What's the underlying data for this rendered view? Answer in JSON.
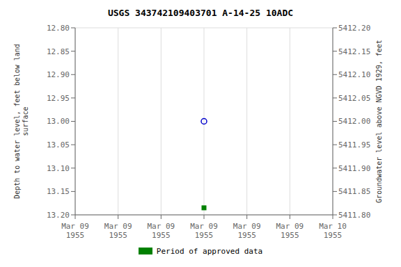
{
  "chart_data": {
    "type": "scatter",
    "title": "USGS 343742109403701 A-14-25 10ADC",
    "y_label": "Depth to water level, feet below land\nsurface",
    "y2_label": "Groundwater level above NGVD 1929, feet",
    "categories": [
      "Mar 09\n1955",
      "Mar 09\n1955",
      "Mar 09\n1955",
      "Mar 09\n1955",
      "Mar 09\n1955",
      "Mar 09\n1955",
      "Mar 10\n1955"
    ],
    "series": [
      {
        "color": "#0000cc",
        "marker": "circle",
        "values": [
          null,
          null,
          null,
          13.0,
          null,
          null,
          null
        ]
      },
      {
        "name": "Period of approved data",
        "color": "#008000",
        "marker": "square",
        "values": [
          null,
          null,
          null,
          13.185,
          null,
          null,
          null
        ]
      }
    ],
    "ylim": [
      13.2,
      12.8
    ],
    "yticks": [
      {
        "value": 12.8,
        "label": "12.80"
      },
      {
        "value": 12.85,
        "label": "12.85"
      },
      {
        "value": 12.9,
        "label": "12.90"
      },
      {
        "value": 12.95,
        "label": "12.95"
      },
      {
        "value": 13.0,
        "label": "13.00"
      },
      {
        "value": 13.05,
        "label": "13.05"
      },
      {
        "value": 13.1,
        "label": "13.10"
      },
      {
        "value": 13.15,
        "label": "13.15"
      },
      {
        "value": 13.2,
        "label": "13.20"
      }
    ],
    "y2lim": [
      5411.8,
      5412.2
    ],
    "y2ticks": [
      {
        "value": 5412.2,
        "label": "5412.20"
      },
      {
        "value": 5412.15,
        "label": "5412.15"
      },
      {
        "value": 5412.1,
        "label": "5412.10"
      },
      {
        "value": 5412.05,
        "label": "5412.05"
      },
      {
        "value": 5412.0,
        "label": "5412.00"
      },
      {
        "value": 5411.95,
        "label": "5411.95"
      },
      {
        "value": 5411.9,
        "label": "5411.90"
      },
      {
        "value": 5411.85,
        "label": "5411.85"
      },
      {
        "value": 5411.8,
        "label": "5411.80"
      }
    ],
    "grid": true,
    "legend": "bottom"
  }
}
